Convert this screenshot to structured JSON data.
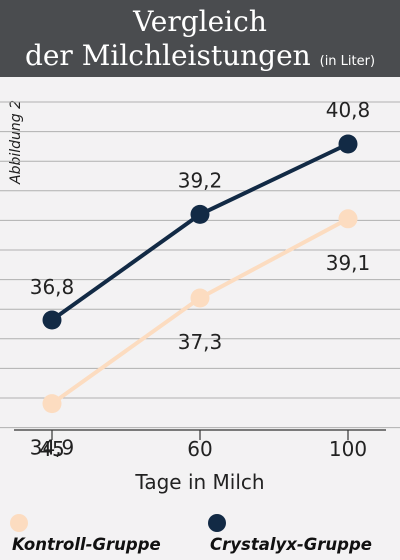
{
  "header": {
    "title_line1": "Vergleich",
    "title_line2": "der Milchleistungen",
    "unit": "(in Liter)"
  },
  "figure_label": "Abbildung 2",
  "chart_data": {
    "type": "line",
    "categories": [
      "45",
      "60",
      "100"
    ],
    "xlabel": "Tage in Milch",
    "ylabel": "",
    "ylim": [
      34.3,
      41.8
    ],
    "grid": "horizontal",
    "legend_position": "bottom",
    "series": [
      {
        "name": "Kontroll-Gruppe",
        "values": [
          34.9,
          37.3,
          39.1
        ],
        "labels": [
          "34,9",
          "37,3",
          "39,1"
        ],
        "color": "#fcdcc0"
      },
      {
        "name": "Crystalyx-Gruppe",
        "values": [
          36.8,
          39.2,
          40.8
        ],
        "labels": [
          "36,8",
          "39,2",
          "40,8"
        ],
        "color": "#122a45"
      }
    ]
  },
  "colors": {
    "header_bg": "#4a4c4f",
    "background": "#f3f2f3",
    "grid": "#b0b0b0",
    "axis": "#333333"
  }
}
